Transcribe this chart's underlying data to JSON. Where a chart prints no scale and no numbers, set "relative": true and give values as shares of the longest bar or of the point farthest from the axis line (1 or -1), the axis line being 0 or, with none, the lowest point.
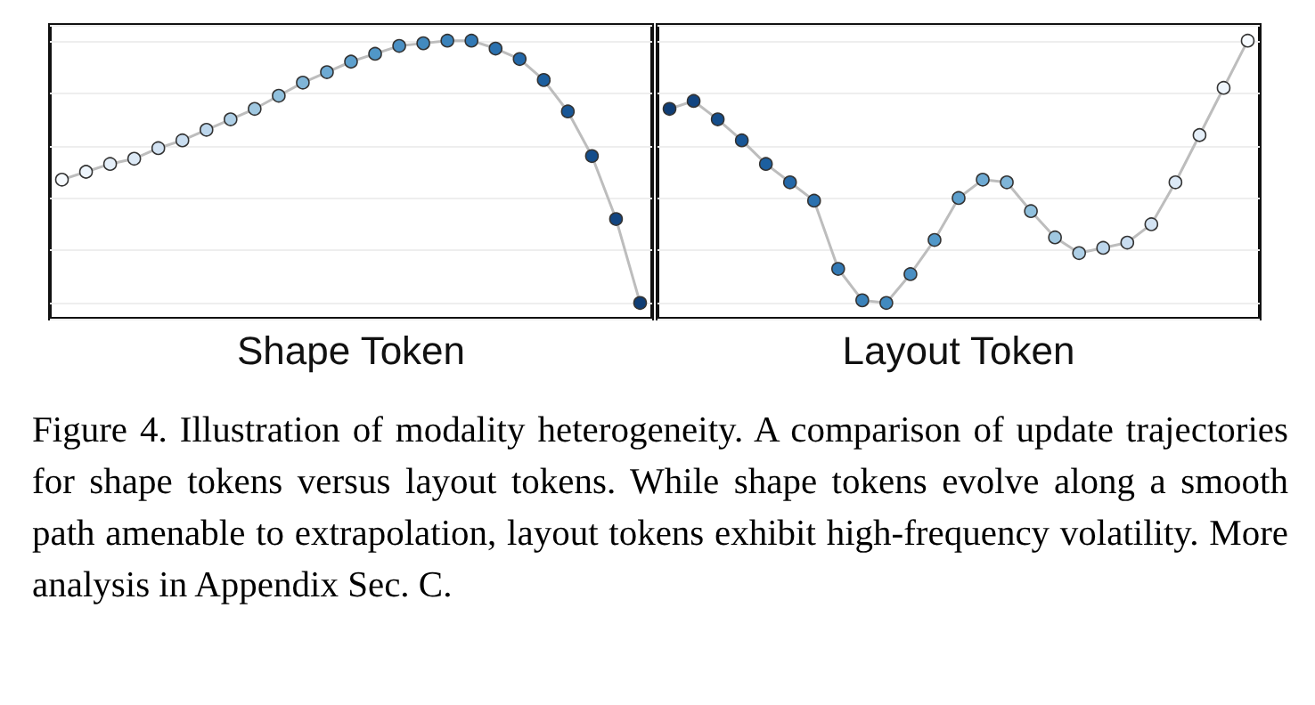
{
  "chart_data": [
    {
      "type": "line",
      "relative": true,
      "xlabel": "Shape Token",
      "grid": true,
      "marker": "circle",
      "line_style": "solid",
      "annotations": [
        "Figure 4. Illustration of modality heterogeneity. A comparison of update trajectories for shape tokens versus layout tokens. While shape tokens evolve along a smooth path amenable to extrapolation, layout tokens exhibit high-frequency volatility. More analysis in Appendix Sec. C."
      ],
      "categories": [
        null,
        null,
        null,
        null,
        null,
        null,
        null,
        null,
        null,
        null,
        null,
        null,
        null,
        null,
        null,
        null,
        null,
        null,
        null,
        null,
        null,
        null,
        null,
        null,
        null
      ],
      "series": [
        {
          "color": "#bdbdbd",
          "values": [
            0.47,
            0.5,
            0.53,
            0.55,
            0.59,
            0.62,
            0.66,
            0.7,
            0.74,
            0.79,
            0.84,
            0.88,
            0.92,
            0.95,
            0.98,
            0.99,
            1,
            1,
            0.97,
            0.93,
            0.85,
            0.73,
            0.56,
            0.32,
            0
          ],
          "colors": [
            "#f7fbff",
            "#eef5fc",
            "#e5eff9",
            "#dce9f6",
            "#d3e3f3",
            "#c9ddf0",
            "#bcd6ec",
            "#aecfe6",
            "#a0c8e1",
            "#90c0dd",
            "#7fb5d8",
            "#6eaad3",
            "#5ea0cd",
            "#5097c8",
            "#4a8fc3",
            "#428abf",
            "#3a82ba",
            "#3279b5",
            "#2a71af",
            "#2368a9",
            "#1c5f9f",
            "#185696",
            "#144d8b",
            "#124581",
            "#0f3d75"
          ]
        }
      ]
    },
    {
      "type": "line",
      "relative": true,
      "xlabel": "Layout Token",
      "grid": true,
      "marker": "circle",
      "line_style": "solid",
      "categories": [
        null,
        null,
        null,
        null,
        null,
        null,
        null,
        null,
        null,
        null,
        null,
        null,
        null,
        null,
        null,
        null,
        null,
        null,
        null,
        null,
        null,
        null,
        null,
        null,
        null
      ],
      "series": [
        {
          "color": "#bdbdbd",
          "values": [
            0.74,
            0.77,
            0.7,
            0.62,
            0.53,
            0.46,
            0.39,
            0.13,
            0.01,
            0,
            0.11,
            0.24,
            0.4,
            0.47,
            0.46,
            0.35,
            0.25,
            0.19,
            0.21,
            0.23,
            0.3,
            0.46,
            0.64,
            0.82,
            1
          ],
          "colors": [
            "#0f3d75",
            "#124581",
            "#144d8b",
            "#185696",
            "#1c5f9f",
            "#2368a9",
            "#2a71af",
            "#3279b5",
            "#3a82ba",
            "#428abf",
            "#4a8fc3",
            "#5097c8",
            "#5ea0cd",
            "#6eaad3",
            "#7fb5d8",
            "#90c0dd",
            "#a0c8e1",
            "#aecfe6",
            "#bcd6ec",
            "#c9ddf0",
            "#d3e3f3",
            "#dce9f6",
            "#e5eff9",
            "#eef5fc",
            "#f7fbff"
          ]
        }
      ]
    }
  ]
}
